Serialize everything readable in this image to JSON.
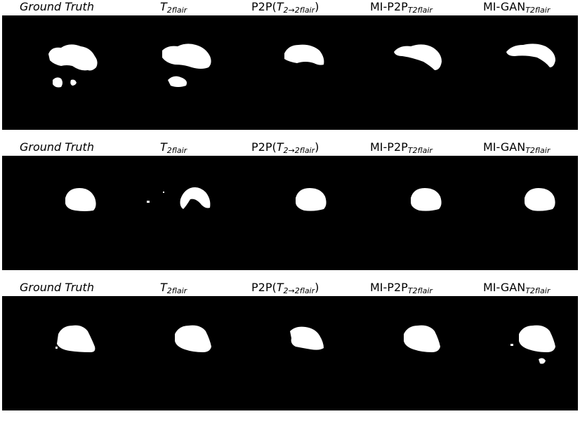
{
  "figure": {
    "columns": [
      {
        "key": "gt",
        "label_main": "Ground Truth",
        "label_sub": ""
      },
      {
        "key": "t2",
        "label_main": "T",
        "label_sub": "2flair"
      },
      {
        "key": "p2p",
        "label_main": "P2P(",
        "label_mid": "T",
        "label_sub": "2→2flair",
        "label_end": ")"
      },
      {
        "key": "mip2p",
        "label_main": "MI-P2P",
        "label_sub": "T2flair"
      },
      {
        "key": "migan",
        "label_main": "MI-GAN",
        "label_sub": "T2flair"
      }
    ],
    "rows": [
      {
        "name": "row-1"
      },
      {
        "name": "row-2"
      },
      {
        "name": "row-3"
      }
    ],
    "colors": {
      "background": "#000000",
      "mask": "#ffffff",
      "page": "#ffffff"
    }
  }
}
